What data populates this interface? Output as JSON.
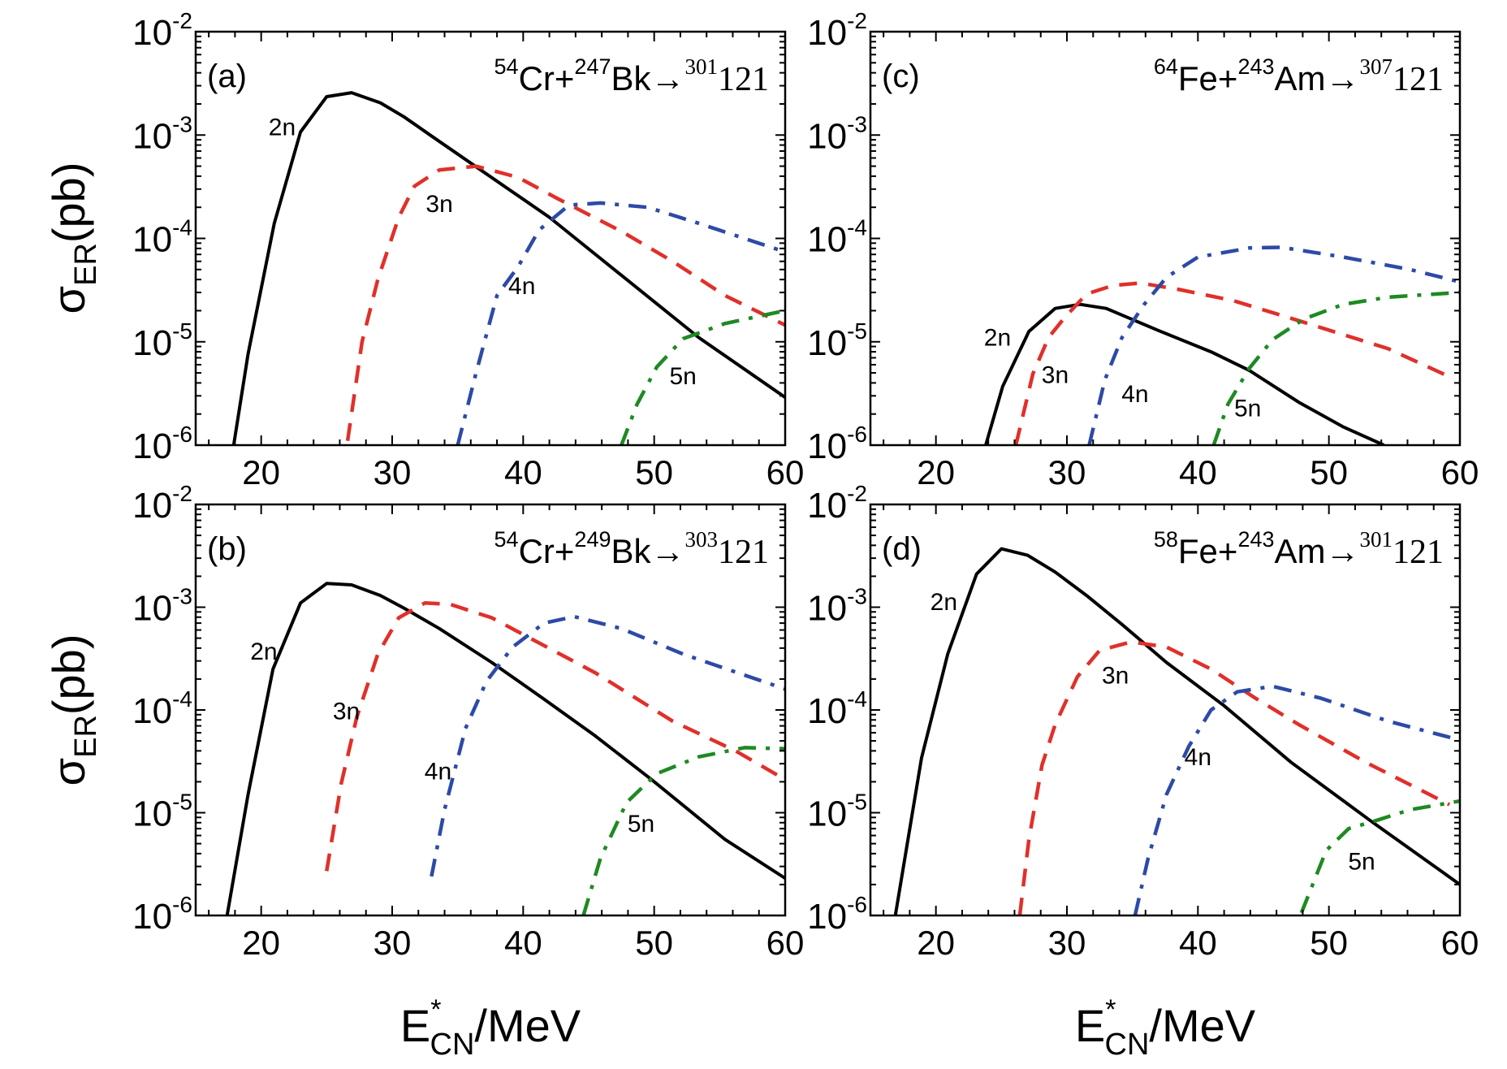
{
  "figure": {
    "ylabel": {
      "main": "σ",
      "sub": "ER",
      "unit": "(pb)"
    },
    "xlabel": {
      "main": "E",
      "sup": "*",
      "sub": "CN",
      "unit": "/MeV"
    },
    "colors": {
      "2n": "#000000",
      "3n": "#e0302a",
      "4n": "#2d4aa6",
      "5n": "#1e8a22"
    },
    "line_styles": {
      "2n": "solid",
      "3n": "dashed",
      "4n": "dash-dot",
      "5n": "dash-dot"
    }
  },
  "chart_data": [
    {
      "type": "line",
      "panel": "(a)",
      "reaction": {
        "p_A": "54",
        "p": "Cr",
        "t_A": "247",
        "t": "Bk",
        "arrow": "→",
        "cn_A": "301",
        "cn": "121"
      },
      "xlim": [
        15,
        60
      ],
      "ylim": [
        1e-06,
        0.01
      ],
      "yscale": "log",
      "x_ticks": [
        20,
        30,
        40,
        50,
        60
      ],
      "y_tick_exponents": [
        -2,
        -3,
        -4,
        -5,
        -6
      ],
      "series": [
        {
          "name": "2n",
          "x": [
            17.9,
            19.0,
            21.0,
            23.0,
            25.0,
            26.9,
            29.1,
            30.9,
            32.9,
            42.0,
            53.4,
            60
          ],
          "y": [
            1e-06,
            7.6e-06,
            0.00014,
            0.00107,
            0.00235,
            0.00257,
            0.00205,
            0.0015,
            0.001,
            0.00016,
            1.1e-05,
            2.9e-06
          ]
        },
        {
          "name": "3n",
          "x": [
            26.6,
            27.7,
            28.9,
            30.5,
            31.7,
            33.6,
            36.4,
            39.6,
            42.7,
            47.5,
            51.4,
            55.4,
            60
          ],
          "y": [
            1.1e-06,
            1e-05,
            4e-05,
            0.00016,
            0.00032,
            0.00046,
            0.0005,
            0.00039,
            0.00024,
            0.000117,
            6e-05,
            2.8e-05,
            1.45e-05
          ]
        },
        {
          "name": "4n",
          "x": [
            35.0,
            36.4,
            38.0,
            39.6,
            41.2,
            43.5,
            45.9,
            49.5,
            53.4,
            60
          ],
          "y": [
            1e-06,
            5e-06,
            2.8e-05,
            5.3e-05,
            0.00012,
            0.00021,
            0.00022,
            0.0002,
            0.00014,
            7.4e-05
          ]
        },
        {
          "name": "5n",
          "x": [
            47.5,
            48.7,
            50.2,
            52.2,
            55.4,
            60
          ],
          "y": [
            1e-06,
            2.5e-06,
            5.7e-06,
            1.07e-05,
            1.5e-05,
            2e-05
          ]
        }
      ],
      "annotations": [
        {
          "text": "2n",
          "x": 21.6,
          "y": 0.001
        },
        {
          "text": "3n",
          "x": 33.6,
          "y": 0.00018
        },
        {
          "text": "4n",
          "x": 39.9,
          "y": 2.9e-05
        },
        {
          "text": "5n",
          "x": 52.2,
          "y": 3.9e-06
        }
      ]
    },
    {
      "type": "line",
      "panel": "(b)",
      "reaction": {
        "p_A": "54",
        "p": "Cr",
        "t_A": "249",
        "t": "Bk",
        "arrow": "→",
        "cn_A": "303",
        "cn": "121"
      },
      "xlim": [
        15,
        60
      ],
      "ylim": [
        1e-06,
        0.01
      ],
      "yscale": "log",
      "x_ticks": [
        20,
        30,
        40,
        50,
        60
      ],
      "y_tick_exponents": [
        -2,
        -3,
        -4,
        -5,
        -6
      ],
      "series": [
        {
          "name": "2n",
          "x": [
            17.4,
            19.0,
            20.9,
            23.0,
            25.0,
            26.9,
            29.1,
            30.9,
            33.6,
            37.6,
            41.5,
            45.5,
            49.8,
            55.4,
            60
          ],
          "y": [
            1e-06,
            1.5e-05,
            0.00025,
            0.0011,
            0.0017,
            0.00165,
            0.0013,
            0.00098,
            0.00062,
            0.00029,
            0.00013,
            5.6e-05,
            2.1e-05,
            5.5e-06,
            2.3e-06
          ]
        },
        {
          "name": "3n",
          "x": [
            25.0,
            26.1,
            27.3,
            28.9,
            30.5,
            32.5,
            34.4,
            37.6,
            41.2,
            45.5,
            51.4,
            56.2,
            60
          ],
          "y": [
            2.7e-06,
            1.9e-05,
            8.5e-05,
            0.00035,
            0.00079,
            0.0011,
            0.00107,
            0.00079,
            0.00045,
            0.00023,
            7.8e-05,
            4e-05,
            2.1e-05
          ]
        },
        {
          "name": "4n",
          "x": [
            33.0,
            34.0,
            35.6,
            37.2,
            39.2,
            41.6,
            43.9,
            47.5,
            52.2,
            60
          ],
          "y": [
            2.4e-06,
            1.07e-05,
            6.6e-05,
            0.00019,
            0.00041,
            0.0007,
            0.00081,
            0.00062,
            0.00035,
            0.00016
          ]
        },
        {
          "name": "5n",
          "x": [
            44.6,
            45.9,
            47.9,
            50.2,
            53.4,
            56.9,
            60
          ],
          "y": [
            1e-06,
            3.6e-06,
            1.26e-05,
            2.4e-05,
            3.5e-05,
            4.3e-05,
            4.2e-05
          ]
        }
      ],
      "annotations": [
        {
          "text": "2n",
          "x": 20.2,
          "y": 0.00031
        },
        {
          "text": "3n",
          "x": 26.5,
          "y": 8.1e-05
        },
        {
          "text": "4n",
          "x": 33.5,
          "y": 2.1e-05
        },
        {
          "text": "5n",
          "x": 49.0,
          "y": 6.5e-06
        }
      ]
    },
    {
      "type": "line",
      "panel": "(c)",
      "reaction": {
        "p_A": "64",
        "p": "Fe",
        "t_A": "243",
        "t": "Am",
        "arrow": "→",
        "cn_A": "307",
        "cn": "121"
      },
      "xlim": [
        15,
        60
      ],
      "ylim": [
        1e-06,
        0.01
      ],
      "yscale": "log",
      "x_ticks": [
        20,
        30,
        40,
        50,
        60
      ],
      "y_tick_exponents": [
        -2,
        -3,
        -4,
        -5,
        -6
      ],
      "series": [
        {
          "name": "2n",
          "x": [
            23.8,
            25.1,
            27.1,
            29.1,
            31.0,
            33.0,
            36.9,
            41.0,
            43.9,
            47.7,
            51.1,
            54.2
          ],
          "y": [
            1e-06,
            3.7e-06,
            1.26e-05,
            2.1e-05,
            2.3e-05,
            2.1e-05,
            1.3e-05,
            8e-06,
            5.3e-06,
            2.6e-06,
            1.5e-06,
            1e-06
          ]
        },
        {
          "name": "3n",
          "x": [
            26.1,
            27.4,
            28.6,
            29.8,
            31.5,
            33.5,
            35.6,
            38.6,
            42.7,
            47.7,
            54.5,
            59.2
          ],
          "y": [
            1e-06,
            4.9e-06,
            1.1e-05,
            1.7e-05,
            2.9e-05,
            3.5e-05,
            3.7e-05,
            3.2e-05,
            2.5e-05,
            1.6e-05,
            8.6e-06,
            4.6e-06
          ]
        },
        {
          "name": "4n",
          "x": [
            31.7,
            32.9,
            34.2,
            35.9,
            37.6,
            40.0,
            44.0,
            46.4,
            51.1,
            56.2,
            60
          ],
          "y": [
            1e-06,
            4.3e-06,
            1.1e-05,
            2.3e-05,
            4.2e-05,
            6.6e-05,
            8.1e-05,
            8.2e-05,
            6.6e-05,
            5e-05,
            3.8e-05
          ]
        },
        {
          "name": "5n",
          "x": [
            41.2,
            42.3,
            43.9,
            45.7,
            48.1,
            51.1,
            54.5,
            60
          ],
          "y": [
            1e-06,
            2.5e-06,
            5.5e-06,
            1.05e-05,
            1.66e-05,
            2.3e-05,
            2.7e-05,
            3e-05
          ]
        }
      ],
      "annotations": [
        {
          "text": "2n",
          "x": 24.7,
          "y": 9.2e-06
        },
        {
          "text": "3n",
          "x": 29.1,
          "y": 4e-06
        },
        {
          "text": "4n",
          "x": 35.2,
          "y": 2.6e-06
        },
        {
          "text": "5n",
          "x": 43.8,
          "y": 1.9e-06
        }
      ]
    },
    {
      "type": "line",
      "panel": "(d)",
      "reaction": {
        "p_A": "58",
        "p": "Fe",
        "t_A": "243",
        "t": "Am",
        "arrow": "→",
        "cn_A": "301",
        "cn": "121"
      },
      "xlim": [
        15,
        60
      ],
      "ylim": [
        1e-06,
        0.01
      ],
      "yscale": "log",
      "x_ticks": [
        20,
        30,
        40,
        50,
        60
      ],
      "y_tick_exponents": [
        -2,
        -3,
        -4,
        -5,
        -6
      ],
      "series": [
        {
          "name": "2n",
          "x": [
            16.9,
            18.9,
            20.9,
            23.1,
            25.0,
            27.0,
            29.1,
            31.5,
            34.2,
            37.6,
            42.0,
            47.1,
            53.2,
            60
          ],
          "y": [
            1e-06,
            3.4e-05,
            0.00035,
            0.0021,
            0.0037,
            0.0032,
            0.0022,
            0.0013,
            0.00068,
            0.00029,
            0.00011,
            3.1e-05,
            8.3e-06,
            2e-06
          ]
        },
        {
          "name": "3n",
          "x": [
            26.4,
            27.1,
            28.1,
            29.1,
            30.8,
            32.5,
            34.9,
            37.6,
            41.0,
            44.4,
            47.7,
            52.8,
            59.2
          ],
          "y": [
            1e-06,
            5.5e-06,
            2.9e-05,
            7.2e-05,
            0.00021,
            0.00038,
            0.00046,
            0.00041,
            0.00025,
            0.00013,
            7.2e-05,
            3.1e-05,
            1.2e-05
          ]
        },
        {
          "name": "4n",
          "x": [
            35.2,
            36.2,
            37.6,
            39.3,
            41.0,
            43.0,
            45.7,
            49.4,
            54.5,
            60
          ],
          "y": [
            1e-06,
            3.6e-06,
            1.5e-05,
            4.4e-05,
            0.0001,
            0.00015,
            0.00017,
            0.00013,
            7.8e-05,
            5.1e-05
          ]
        },
        {
          "name": "5n",
          "x": [
            47.9,
            49.8,
            51.5,
            53.5,
            56.2,
            60
          ],
          "y": [
            1.06e-06,
            4.3e-06,
            7e-06,
            8.3e-06,
            1.07e-05,
            1.3e-05
          ]
        }
      ],
      "annotations": [
        {
          "text": "2n",
          "x": 20.6,
          "y": 0.00094
        },
        {
          "text": "3n",
          "x": 33.7,
          "y": 0.00018
        },
        {
          "text": "4n",
          "x": 40.0,
          "y": 2.9e-05
        },
        {
          "text": "5n",
          "x": 52.5,
          "y": 2.8e-06
        }
      ]
    }
  ]
}
